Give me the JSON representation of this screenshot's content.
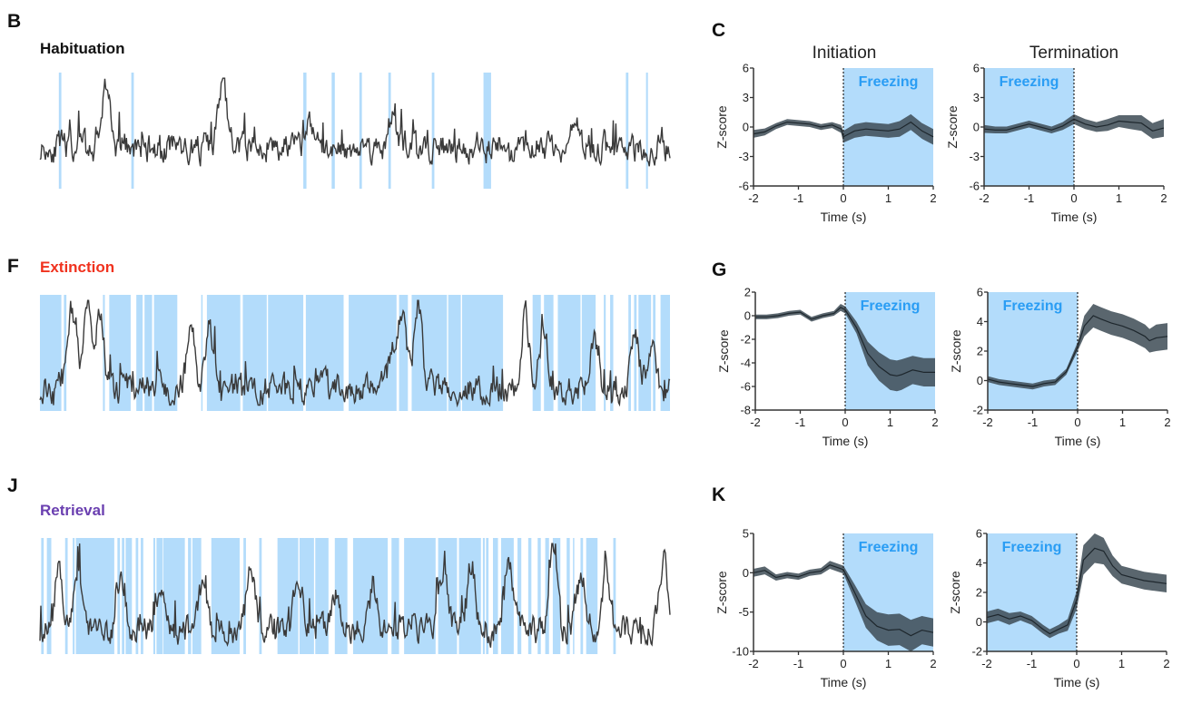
{
  "colors": {
    "freezing_fill": "#b3dcfb",
    "freezing_text": "#2a9df4",
    "trace": "#3a3a3a",
    "sem_band": "#3d4b55",
    "habituation": "#111111",
    "extinction": "#f0321e",
    "retrieval": "#6a3fb0"
  },
  "panels": {
    "B": "B",
    "F": "F",
    "J": "J",
    "C": "C",
    "G": "G",
    "K": "K"
  },
  "column_titles": {
    "initiation": "Initiation",
    "termination": "Termination"
  },
  "chart_data": [
    {
      "type": "line",
      "id": "trace-habituation",
      "panel": "B",
      "title": "Habituation",
      "title_color": "#111111",
      "x_range": [
        0,
        1
      ],
      "freezing_epochs": [
        [
          0.03,
          0.034
        ],
        [
          0.145,
          0.149
        ],
        [
          0.418,
          0.423
        ],
        [
          0.463,
          0.468
        ],
        [
          0.507,
          0.511
        ],
        [
          0.553,
          0.557
        ],
        [
          0.622,
          0.626
        ],
        [
          0.704,
          0.716
        ],
        [
          0.93,
          0.934
        ],
        [
          0.962,
          0.965
        ]
      ],
      "trace_seed": 11,
      "trace_peaks": [
        [
          0.105,
          0.95
        ],
        [
          0.29,
          1.0
        ],
        [
          0.43,
          0.55
        ],
        [
          0.56,
          0.65
        ],
        [
          0.85,
          0.55
        ]
      ],
      "baseline": 0.35
    },
    {
      "type": "line",
      "id": "trace-extinction",
      "panel": "F",
      "title": "Extinction",
      "title_color": "#f0321e",
      "x_range": [
        0,
        1
      ],
      "freezing_epochs": [
        [
          0.0,
          0.034
        ],
        [
          0.038,
          0.042
        ],
        [
          0.1,
          0.103
        ],
        [
          0.11,
          0.144
        ],
        [
          0.153,
          0.163
        ],
        [
          0.166,
          0.178
        ],
        [
          0.181,
          0.218
        ],
        [
          0.256,
          0.258
        ],
        [
          0.265,
          0.318
        ],
        [
          0.322,
          0.36
        ],
        [
          0.362,
          0.418
        ],
        [
          0.422,
          0.482
        ],
        [
          0.49,
          0.566
        ],
        [
          0.57,
          0.584
        ],
        [
          0.59,
          0.646
        ],
        [
          0.648,
          0.668
        ],
        [
          0.67,
          0.735
        ],
        [
          0.782,
          0.795
        ],
        [
          0.8,
          0.815
        ],
        [
          0.822,
          0.858
        ],
        [
          0.86,
          0.882
        ],
        [
          0.895,
          0.898
        ],
        [
          0.905,
          0.91
        ],
        [
          0.934,
          0.938
        ],
        [
          0.943,
          0.947
        ],
        [
          0.95,
          0.97
        ],
        [
          0.973,
          0.977
        ],
        [
          0.985,
          1.0
        ]
      ],
      "trace_seed": 23,
      "trace_peaks": [
        [
          0.05,
          0.95
        ],
        [
          0.075,
          0.98
        ],
        [
          0.095,
          0.8
        ],
        [
          0.24,
          0.72
        ],
        [
          0.27,
          0.75
        ],
        [
          0.56,
          0.55
        ],
        [
          0.575,
          0.85
        ],
        [
          0.6,
          0.95
        ],
        [
          0.77,
          0.85
        ],
        [
          0.8,
          0.78
        ],
        [
          0.88,
          0.6
        ],
        [
          0.945,
          0.6
        ],
        [
          0.97,
          0.55
        ]
      ],
      "baseline": 0.18
    },
    {
      "type": "line",
      "id": "trace-retrieval",
      "panel": "J",
      "title": "Retrieval",
      "title_color": "#6a3fb0",
      "x_range": [
        0,
        1
      ],
      "freezing_epochs": [
        [
          0.002,
          0.006
        ],
        [
          0.011,
          0.018
        ],
        [
          0.04,
          0.044
        ],
        [
          0.052,
          0.055
        ],
        [
          0.057,
          0.118
        ],
        [
          0.123,
          0.127
        ],
        [
          0.13,
          0.134
        ],
        [
          0.136,
          0.146
        ],
        [
          0.152,
          0.156
        ],
        [
          0.16,
          0.164
        ],
        [
          0.18,
          0.183
        ],
        [
          0.185,
          0.195
        ],
        [
          0.196,
          0.23
        ],
        [
          0.235,
          0.24
        ],
        [
          0.242,
          0.256
        ],
        [
          0.272,
          0.317
        ],
        [
          0.323,
          0.327
        ],
        [
          0.348,
          0.352
        ],
        [
          0.377,
          0.41
        ],
        [
          0.412,
          0.435
        ],
        [
          0.437,
          0.458
        ],
        [
          0.468,
          0.488
        ],
        [
          0.497,
          0.552
        ],
        [
          0.558,
          0.57
        ],
        [
          0.578,
          0.628
        ],
        [
          0.632,
          0.662
        ],
        [
          0.665,
          0.7
        ],
        [
          0.703,
          0.706
        ],
        [
          0.708,
          0.712
        ],
        [
          0.719,
          0.727
        ],
        [
          0.732,
          0.752
        ],
        [
          0.758,
          0.764
        ],
        [
          0.775,
          0.78
        ],
        [
          0.79,
          0.795
        ],
        [
          0.802,
          0.808
        ],
        [
          0.814,
          0.826
        ],
        [
          0.836,
          0.841
        ],
        [
          0.846,
          0.848
        ],
        [
          0.858,
          0.862
        ],
        [
          0.867,
          0.885
        ],
        [
          0.91,
          0.914
        ]
      ],
      "trace_seed": 37,
      "trace_peaks": [
        [
          0.03,
          0.75
        ],
        [
          0.06,
          0.7
        ],
        [
          0.13,
          0.65
        ],
        [
          0.19,
          0.6
        ],
        [
          0.26,
          0.65
        ],
        [
          0.335,
          0.82
        ],
        [
          0.41,
          0.7
        ],
        [
          0.47,
          0.5
        ],
        [
          0.53,
          0.62
        ],
        [
          0.64,
          0.78
        ],
        [
          0.685,
          0.82
        ],
        [
          0.745,
          0.72
        ],
        [
          0.815,
          0.9
        ],
        [
          0.86,
          0.75
        ],
        [
          0.9,
          0.7
        ],
        [
          0.99,
          0.85
        ]
      ],
      "baseline": 0.2
    },
    {
      "type": "area",
      "id": "peth-habituation-initiation",
      "panel": "C",
      "column": "Initiation",
      "xlabel": "Time (s)",
      "ylabel": "Z-score",
      "xlim": [
        -2,
        2
      ],
      "ylim": [
        -6,
        6
      ],
      "xticks": [
        -2,
        -1,
        0,
        1,
        2
      ],
      "yticks": [
        -6,
        -3,
        0,
        3,
        6
      ],
      "freezing_region": [
        0,
        2
      ],
      "freezing_label": "Freezing",
      "x": [
        -2,
        -1.75,
        -1.5,
        -1.25,
        -1,
        -0.75,
        -0.5,
        -0.25,
        -0.05,
        0,
        0.25,
        0.5,
        0.75,
        1,
        1.25,
        1.5,
        1.75,
        2
      ],
      "mean": [
        -0.7,
        -0.5,
        0.1,
        0.5,
        0.4,
        0.3,
        0.0,
        0.2,
        -0.2,
        -1.0,
        -0.4,
        -0.2,
        -0.3,
        -0.4,
        -0.2,
        0.5,
        -0.4,
        -1.0
      ],
      "sem": [
        0.4,
        0.35,
        0.3,
        0.3,
        0.3,
        0.3,
        0.3,
        0.3,
        0.4,
        0.6,
        0.7,
        0.7,
        0.7,
        0.7,
        0.8,
        0.8,
        0.8,
        0.8
      ]
    },
    {
      "type": "area",
      "id": "peth-habituation-termination",
      "panel": "C",
      "column": "Termination",
      "xlabel": "Time (s)",
      "ylabel": "Z-score",
      "xlim": [
        -2,
        2
      ],
      "ylim": [
        -6,
        6
      ],
      "xticks": [
        -2,
        -1,
        0,
        1,
        2
      ],
      "yticks": [
        -6,
        -3,
        0,
        3,
        6
      ],
      "freezing_region": [
        -2,
        0
      ],
      "freezing_label": "Freezing",
      "x": [
        -2,
        -1.75,
        -1.5,
        -1.25,
        -1,
        -0.75,
        -0.5,
        -0.25,
        0,
        0.25,
        0.5,
        0.75,
        1,
        1.25,
        1.5,
        1.75,
        2
      ],
      "mean": [
        -0.2,
        -0.3,
        -0.3,
        0.0,
        0.3,
        0.0,
        -0.3,
        0.1,
        0.8,
        0.3,
        0.0,
        0.2,
        0.6,
        0.5,
        0.4,
        -0.4,
        -0.1
      ],
      "sem": [
        0.4,
        0.35,
        0.35,
        0.35,
        0.35,
        0.35,
        0.35,
        0.4,
        0.5,
        0.5,
        0.5,
        0.6,
        0.6,
        0.7,
        0.8,
        0.8,
        0.9
      ]
    },
    {
      "type": "area",
      "id": "peth-extinction-initiation",
      "panel": "G",
      "column": "Initiation",
      "xlabel": "Time (s)",
      "ylabel": "Z-score",
      "xlim": [
        -2,
        2
      ],
      "ylim": [
        -8,
        2
      ],
      "xticks": [
        -2,
        -1,
        0,
        1,
        2
      ],
      "yticks": [
        -8,
        -6,
        -4,
        -2,
        0,
        2
      ],
      "freezing_region": [
        0,
        2
      ],
      "freezing_label": "Freezing",
      "x": [
        -2,
        -1.75,
        -1.5,
        -1.25,
        -1,
        -0.75,
        -0.5,
        -0.25,
        -0.1,
        0,
        0.25,
        0.5,
        0.75,
        1,
        1.15,
        1.25,
        1.5,
        1.75,
        2
      ],
      "mean": [
        -0.1,
        -0.1,
        0.0,
        0.2,
        0.3,
        -0.3,
        0.0,
        0.2,
        0.7,
        0.5,
        -1.0,
        -3.2,
        -4.3,
        -5.0,
        -5.1,
        -5.0,
        -4.6,
        -4.8,
        -4.8
      ],
      "sem": [
        0.2,
        0.2,
        0.2,
        0.2,
        0.2,
        0.2,
        0.2,
        0.2,
        0.3,
        0.3,
        0.5,
        1.0,
        1.2,
        1.3,
        1.3,
        1.3,
        1.2,
        1.2,
        1.2
      ]
    },
    {
      "type": "area",
      "id": "peth-extinction-termination",
      "panel": "G",
      "column": "Termination",
      "xlabel": "Time (s)",
      "ylabel": "Z-score",
      "xlim": [
        -2,
        2
      ],
      "ylim": [
        -2,
        6
      ],
      "xticks": [
        -2,
        -1,
        0,
        1,
        2
      ],
      "yticks": [
        -2,
        0,
        2,
        4,
        6
      ],
      "freezing_region": [
        -2,
        0
      ],
      "freezing_label": "Freezing",
      "x": [
        -2,
        -1.75,
        -1.5,
        -1.25,
        -1,
        -0.75,
        -0.5,
        -0.25,
        0,
        0.15,
        0.35,
        0.5,
        0.75,
        1,
        1.25,
        1.5,
        1.6,
        1.75,
        2
      ],
      "mean": [
        0.1,
        -0.1,
        -0.2,
        -0.3,
        -0.4,
        -0.2,
        -0.1,
        0.6,
        2.3,
        3.7,
        4.4,
        4.2,
        3.9,
        3.7,
        3.4,
        3.0,
        2.7,
        2.9,
        3.0
      ],
      "sem": [
        0.2,
        0.2,
        0.2,
        0.2,
        0.2,
        0.2,
        0.2,
        0.2,
        0.3,
        0.7,
        0.8,
        0.8,
        0.8,
        0.8,
        0.8,
        0.8,
        0.8,
        0.9,
        0.9
      ]
    },
    {
      "type": "area",
      "id": "peth-retrieval-initiation",
      "panel": "K",
      "column": "Initiation",
      "xlabel": "Time (s)",
      "ylabel": "Z-score",
      "xlim": [
        -2,
        2
      ],
      "ylim": [
        -10,
        5
      ],
      "xticks": [
        -2,
        -1,
        0,
        1,
        2
      ],
      "yticks": [
        -10,
        -5,
        0,
        5
      ],
      "freezing_region": [
        0,
        2
      ],
      "freezing_label": "Freezing",
      "x": [
        -2,
        -1.75,
        -1.5,
        -1.25,
        -1,
        -0.75,
        -0.5,
        -0.3,
        -0.1,
        0,
        0.25,
        0.5,
        0.75,
        1,
        1.25,
        1.5,
        1.75,
        2
      ],
      "mean": [
        0.0,
        0.3,
        -0.6,
        -0.3,
        -0.5,
        0.0,
        0.2,
        1.0,
        0.6,
        0.4,
        -2.5,
        -5.5,
        -6.8,
        -7.3,
        -7.2,
        -8.0,
        -7.3,
        -7.6
      ],
      "sem": [
        0.5,
        0.5,
        0.4,
        0.4,
        0.4,
        0.4,
        0.4,
        0.5,
        0.5,
        0.5,
        1.0,
        1.5,
        1.8,
        2.0,
        2.0,
        2.0,
        1.8,
        1.8
      ]
    },
    {
      "type": "area",
      "id": "peth-retrieval-termination",
      "panel": "K",
      "column": "Termination",
      "xlabel": "Time (s)",
      "ylabel": "Z-score",
      "xlim": [
        -2,
        2
      ],
      "ylim": [
        -2,
        6
      ],
      "xticks": [
        -2,
        -1,
        0,
        1,
        2
      ],
      "yticks": [
        -2,
        0,
        2,
        4,
        6
      ],
      "freezing_region": [
        -2,
        0
      ],
      "freezing_label": "Freezing",
      "x": [
        -2,
        -1.75,
        -1.5,
        -1.25,
        -1,
        -0.75,
        -0.6,
        -0.4,
        -0.2,
        0,
        0.15,
        0.4,
        0.6,
        0.8,
        1,
        1.25,
        1.5,
        1.75,
        2
      ],
      "mean": [
        0.3,
        0.5,
        0.2,
        0.4,
        0.1,
        -0.5,
        -0.8,
        -0.5,
        -0.2,
        1.5,
        4.2,
        5.0,
        4.8,
        3.8,
        3.2,
        3.0,
        2.8,
        2.7,
        2.6
      ],
      "sem": [
        0.4,
        0.4,
        0.4,
        0.3,
        0.3,
        0.3,
        0.3,
        0.3,
        0.4,
        0.6,
        1.0,
        1.0,
        0.9,
        0.7,
        0.6,
        0.6,
        0.6,
        0.6,
        0.6
      ]
    }
  ]
}
